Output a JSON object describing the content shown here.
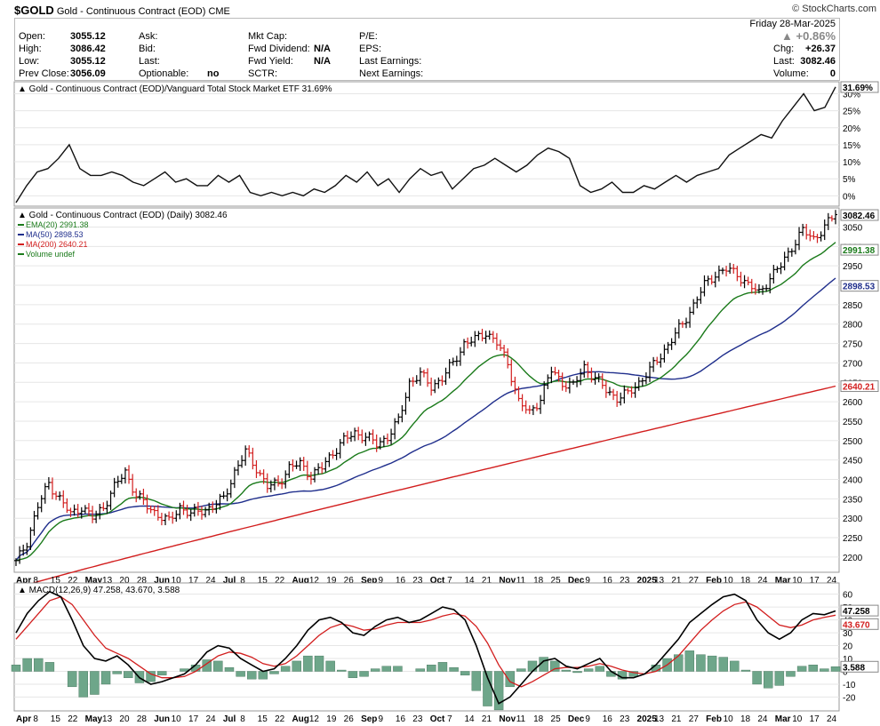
{
  "header": {
    "symbol": "$GOLD",
    "name": "Gold - Continuous Contract (EOD)",
    "exchange": "CME",
    "brand": "© StockCharts.com",
    "date": "Friday  28-Mar-2025",
    "chg_pct": "+0.86%",
    "quote_labels": {
      "open": "Open:",
      "high": "High:",
      "low": "Low:",
      "prev_close": "Prev Close:",
      "ask": "Ask:",
      "bid": "Bid:",
      "last": "Last:",
      "optionable": "Optionable:",
      "mkt_cap": "Mkt Cap:",
      "fwd_dividend": "Fwd Dividend:",
      "fwd_yield": "Fwd Yield:",
      "sctr": "SCTR:",
      "pe": "P/E:",
      "eps": "EPS:",
      "last_earnings": "Last Earnings:",
      "next_earnings": "Next Earnings:",
      "chg": "Chg:",
      "last_price": "Last:",
      "volume": "Volume:"
    },
    "quote_values": {
      "open": "3055.12",
      "high": "3086.42",
      "low": "3055.12",
      "prev_close": "3056.09",
      "optionable": "no",
      "fwd_dividend": "N/A",
      "fwd_yield": "N/A",
      "chg": "+26.37",
      "last_price": "3082.46",
      "volume": "0"
    }
  },
  "colors": {
    "ema20": "#1a7a1a",
    "ma50": "#1f2e8c",
    "ma200": "#d21e1e",
    "up_bar": "#000000",
    "down_bar": "#d21e1e",
    "histogram": "#6ea68a",
    "macd_line": "#000000",
    "signal_line": "#d21e1e",
    "grid": "#e6e6e6"
  },
  "chart_data": [
    {
      "type": "line",
      "title": "Gold - Continuous Contract (EOD)/Vanguard Total Stock Market ETF 31.69%",
      "ylim": [
        -2,
        33
      ],
      "ytick_labels": [
        "0%",
        "5%",
        "10%",
        "15%",
        "20%",
        "25%",
        "30%"
      ],
      "last_label": "31.69%",
      "series": [
        {
          "values": [
            -2,
            3,
            7,
            8,
            11,
            15,
            8,
            6,
            6,
            7,
            6,
            4,
            3,
            5,
            7,
            4,
            5,
            3,
            3,
            6,
            4,
            6,
            1,
            0,
            1,
            0,
            1,
            0,
            2,
            1,
            3,
            6,
            4,
            7,
            3,
            5,
            1,
            5,
            8,
            6,
            7,
            2,
            5,
            8,
            9,
            11,
            9,
            7,
            9,
            12,
            14,
            13,
            11,
            3,
            1,
            2,
            4,
            1,
            1,
            3,
            2,
            4,
            6,
            4,
            6,
            7,
            8,
            12,
            14,
            16,
            18,
            17,
            22,
            26,
            30,
            25,
            26,
            32
          ]
        }
      ],
      "grid": true
    },
    {
      "type": "ohlc",
      "title": "Gold - Continuous Contract (EOD) (Daily) 3082.46",
      "ylim": [
        2170,
        3090
      ],
      "ytick_labels": [
        "2200",
        "2250",
        "2300",
        "2350",
        "2400",
        "2450",
        "2500",
        "2550",
        "2600",
        "2650",
        "2700",
        "2750",
        "2800",
        "2850",
        "2900",
        "2950",
        "3000",
        "3050"
      ],
      "x_labels": [
        "Apr",
        "8",
        "15",
        "22",
        "May",
        "13",
        "20",
        "28",
        "Jun",
        "10",
        "17",
        "24",
        "Jul",
        "8",
        "15",
        "22",
        "Aug",
        "12",
        "19",
        "26",
        "Sep",
        "9",
        "16",
        "23",
        "Oct",
        "7",
        "14",
        "21",
        "Nov",
        "11",
        "18",
        "25",
        "Dec",
        "9",
        "16",
        "23",
        "2025",
        "13",
        "21",
        "27",
        "Feb",
        "10",
        "18",
        "24",
        "Mar",
        "10",
        "17",
        "24"
      ],
      "legend": [
        {
          "label": "EMA(20) 2991.38",
          "color": "ema20"
        },
        {
          "label": "MA(50) 2898.53",
          "color": "ma50"
        },
        {
          "label": "MA(200) 2640.21",
          "color": "ma200"
        },
        {
          "label": "Volume undef",
          "color": "ema20"
        }
      ],
      "last_labels": {
        "price": "3082.46",
        "ema20": "2991.38",
        "ma50": "2898.53",
        "ma200": "2640.21"
      },
      "price_path": [
        2185,
        2240,
        2330,
        2390,
        2350,
        2310,
        2330,
        2300,
        2330,
        2380,
        2420,
        2360,
        2330,
        2310,
        2290,
        2330,
        2310,
        2320,
        2330,
        2350,
        2420,
        2470,
        2430,
        2380,
        2390,
        2430,
        2440,
        2410,
        2430,
        2470,
        2500,
        2520,
        2510,
        2490,
        2510,
        2550,
        2650,
        2670,
        2640,
        2660,
        2700,
        2750,
        2760,
        2780,
        2750,
        2700,
        2600,
        2570,
        2610,
        2680,
        2650,
        2640,
        2690,
        2660,
        2630,
        2610,
        2620,
        2650,
        2680,
        2720,
        2760,
        2800,
        2850,
        2900,
        2930,
        2940,
        2930,
        2900,
        2880,
        2920,
        2950,
        3000,
        3040,
        3020,
        3050,
        3082
      ]
    },
    {
      "type": "line",
      "title": "MACD(12,26,9) 47.258, 43.670, 3.588",
      "ylim": [
        -28,
        66
      ],
      "ytick_labels": [
        "-20",
        "-10",
        "0",
        "10",
        "20",
        "30",
        "40",
        "50",
        "60"
      ],
      "last_labels": [
        "47.258",
        "43.670",
        "3.588"
      ],
      "series": [
        {
          "name": "MACD",
          "values": [
            30,
            45,
            55,
            62,
            58,
            40,
            20,
            10,
            8,
            12,
            5,
            -5,
            -10,
            -8,
            -5,
            -2,
            5,
            15,
            20,
            18,
            10,
            5,
            0,
            2,
            10,
            20,
            32,
            40,
            42,
            38,
            30,
            28,
            35,
            40,
            42,
            38,
            40,
            45,
            50,
            48,
            40,
            20,
            -5,
            -25,
            -20,
            -10,
            0,
            8,
            10,
            4,
            2,
            6,
            10,
            0,
            -5,
            -5,
            -2,
            5,
            15,
            25,
            38,
            45,
            52,
            58,
            60,
            55,
            40,
            30,
            25,
            30,
            40,
            45,
            44,
            47
          ]
        },
        {
          "name": "Signal",
          "values": [
            25,
            35,
            45,
            55,
            58,
            52,
            40,
            28,
            18,
            14,
            10,
            4,
            -2,
            -5,
            -5,
            -4,
            0,
            6,
            12,
            15,
            14,
            11,
            6,
            4,
            6,
            12,
            20,
            28,
            34,
            37,
            35,
            32,
            33,
            36,
            38,
            38,
            38,
            40,
            43,
            45,
            43,
            35,
            22,
            5,
            -8,
            -12,
            -8,
            -3,
            2,
            3,
            3,
            4,
            6,
            4,
            1,
            -1,
            -2,
            0,
            5,
            12,
            22,
            32,
            40,
            47,
            52,
            54,
            50,
            43,
            36,
            34,
            36,
            40,
            42,
            43.7
          ]
        }
      ],
      "histogram": [
        5,
        10,
        10,
        7,
        0,
        -12,
        -20,
        -18,
        -10,
        -2,
        -5,
        -9,
        -8,
        -3,
        0,
        2,
        5,
        9,
        8,
        3,
        -4,
        -6,
        -6,
        -2,
        4,
        8,
        12,
        12,
        8,
        1,
        -5,
        -4,
        2,
        4,
        4,
        0,
        2,
        5,
        7,
        3,
        -3,
        -15,
        -27,
        -30,
        -12,
        2,
        8,
        11,
        8,
        1,
        -1,
        2,
        4,
        -4,
        -6,
        -4,
        0,
        5,
        10,
        13,
        16,
        13,
        12,
        11,
        8,
        1,
        -10,
        -13,
        -11,
        -4,
        4,
        5,
        2,
        3.6
      ]
    }
  ]
}
